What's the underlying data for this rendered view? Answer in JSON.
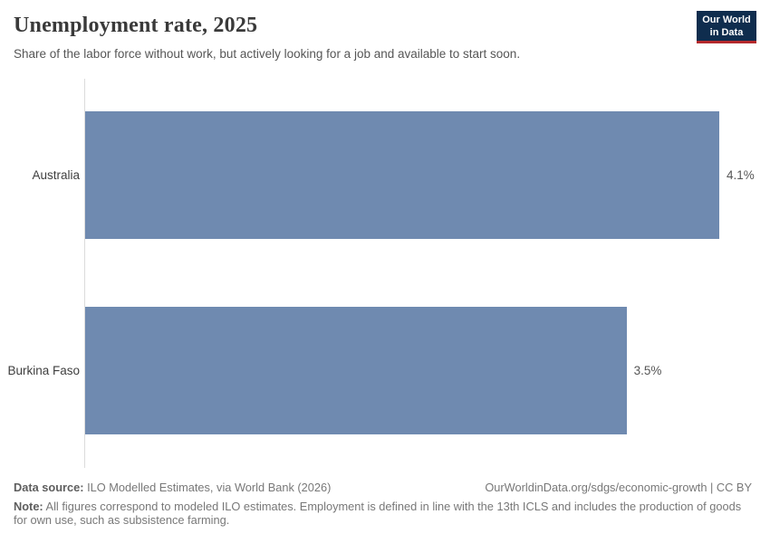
{
  "header": {
    "title": "Unemployment rate, 2025",
    "subtitle": "Share of the labor force without work, but actively looking for a job and available to start soon.",
    "logo": {
      "line1": "Our World",
      "line2": "in Data"
    }
  },
  "chart_data": {
    "type": "bar",
    "orientation": "horizontal",
    "title": "Unemployment rate, 2025",
    "categories": [
      "Australia",
      "Burkina Faso"
    ],
    "values": [
      4.1,
      3.5
    ],
    "value_labels": [
      "4.1%",
      "3.5%"
    ],
    "xlabel": "",
    "ylabel": "",
    "xlim": [
      0,
      4.1
    ],
    "grid": false,
    "legend": "none",
    "bar_color": "#6f8ab0"
  },
  "footer": {
    "data_source_label": "Data source:",
    "data_source_text": " ILO Modelled Estimates, via World Bank (2026)",
    "link_text": "OurWorldinData.org/sdgs/economic-growth | CC BY",
    "note_label": "Note:",
    "note_text": " All figures correspond to modeled ILO estimates. Employment is defined in line with the 13th ICLS and includes the production of goods for own use, such as subsistence farming."
  },
  "colors": {
    "bar": "#6f8ab0",
    "axis": "#dcdcdc",
    "logo_background": "#0f2d4e",
    "logo_underline": "#b5292c"
  }
}
